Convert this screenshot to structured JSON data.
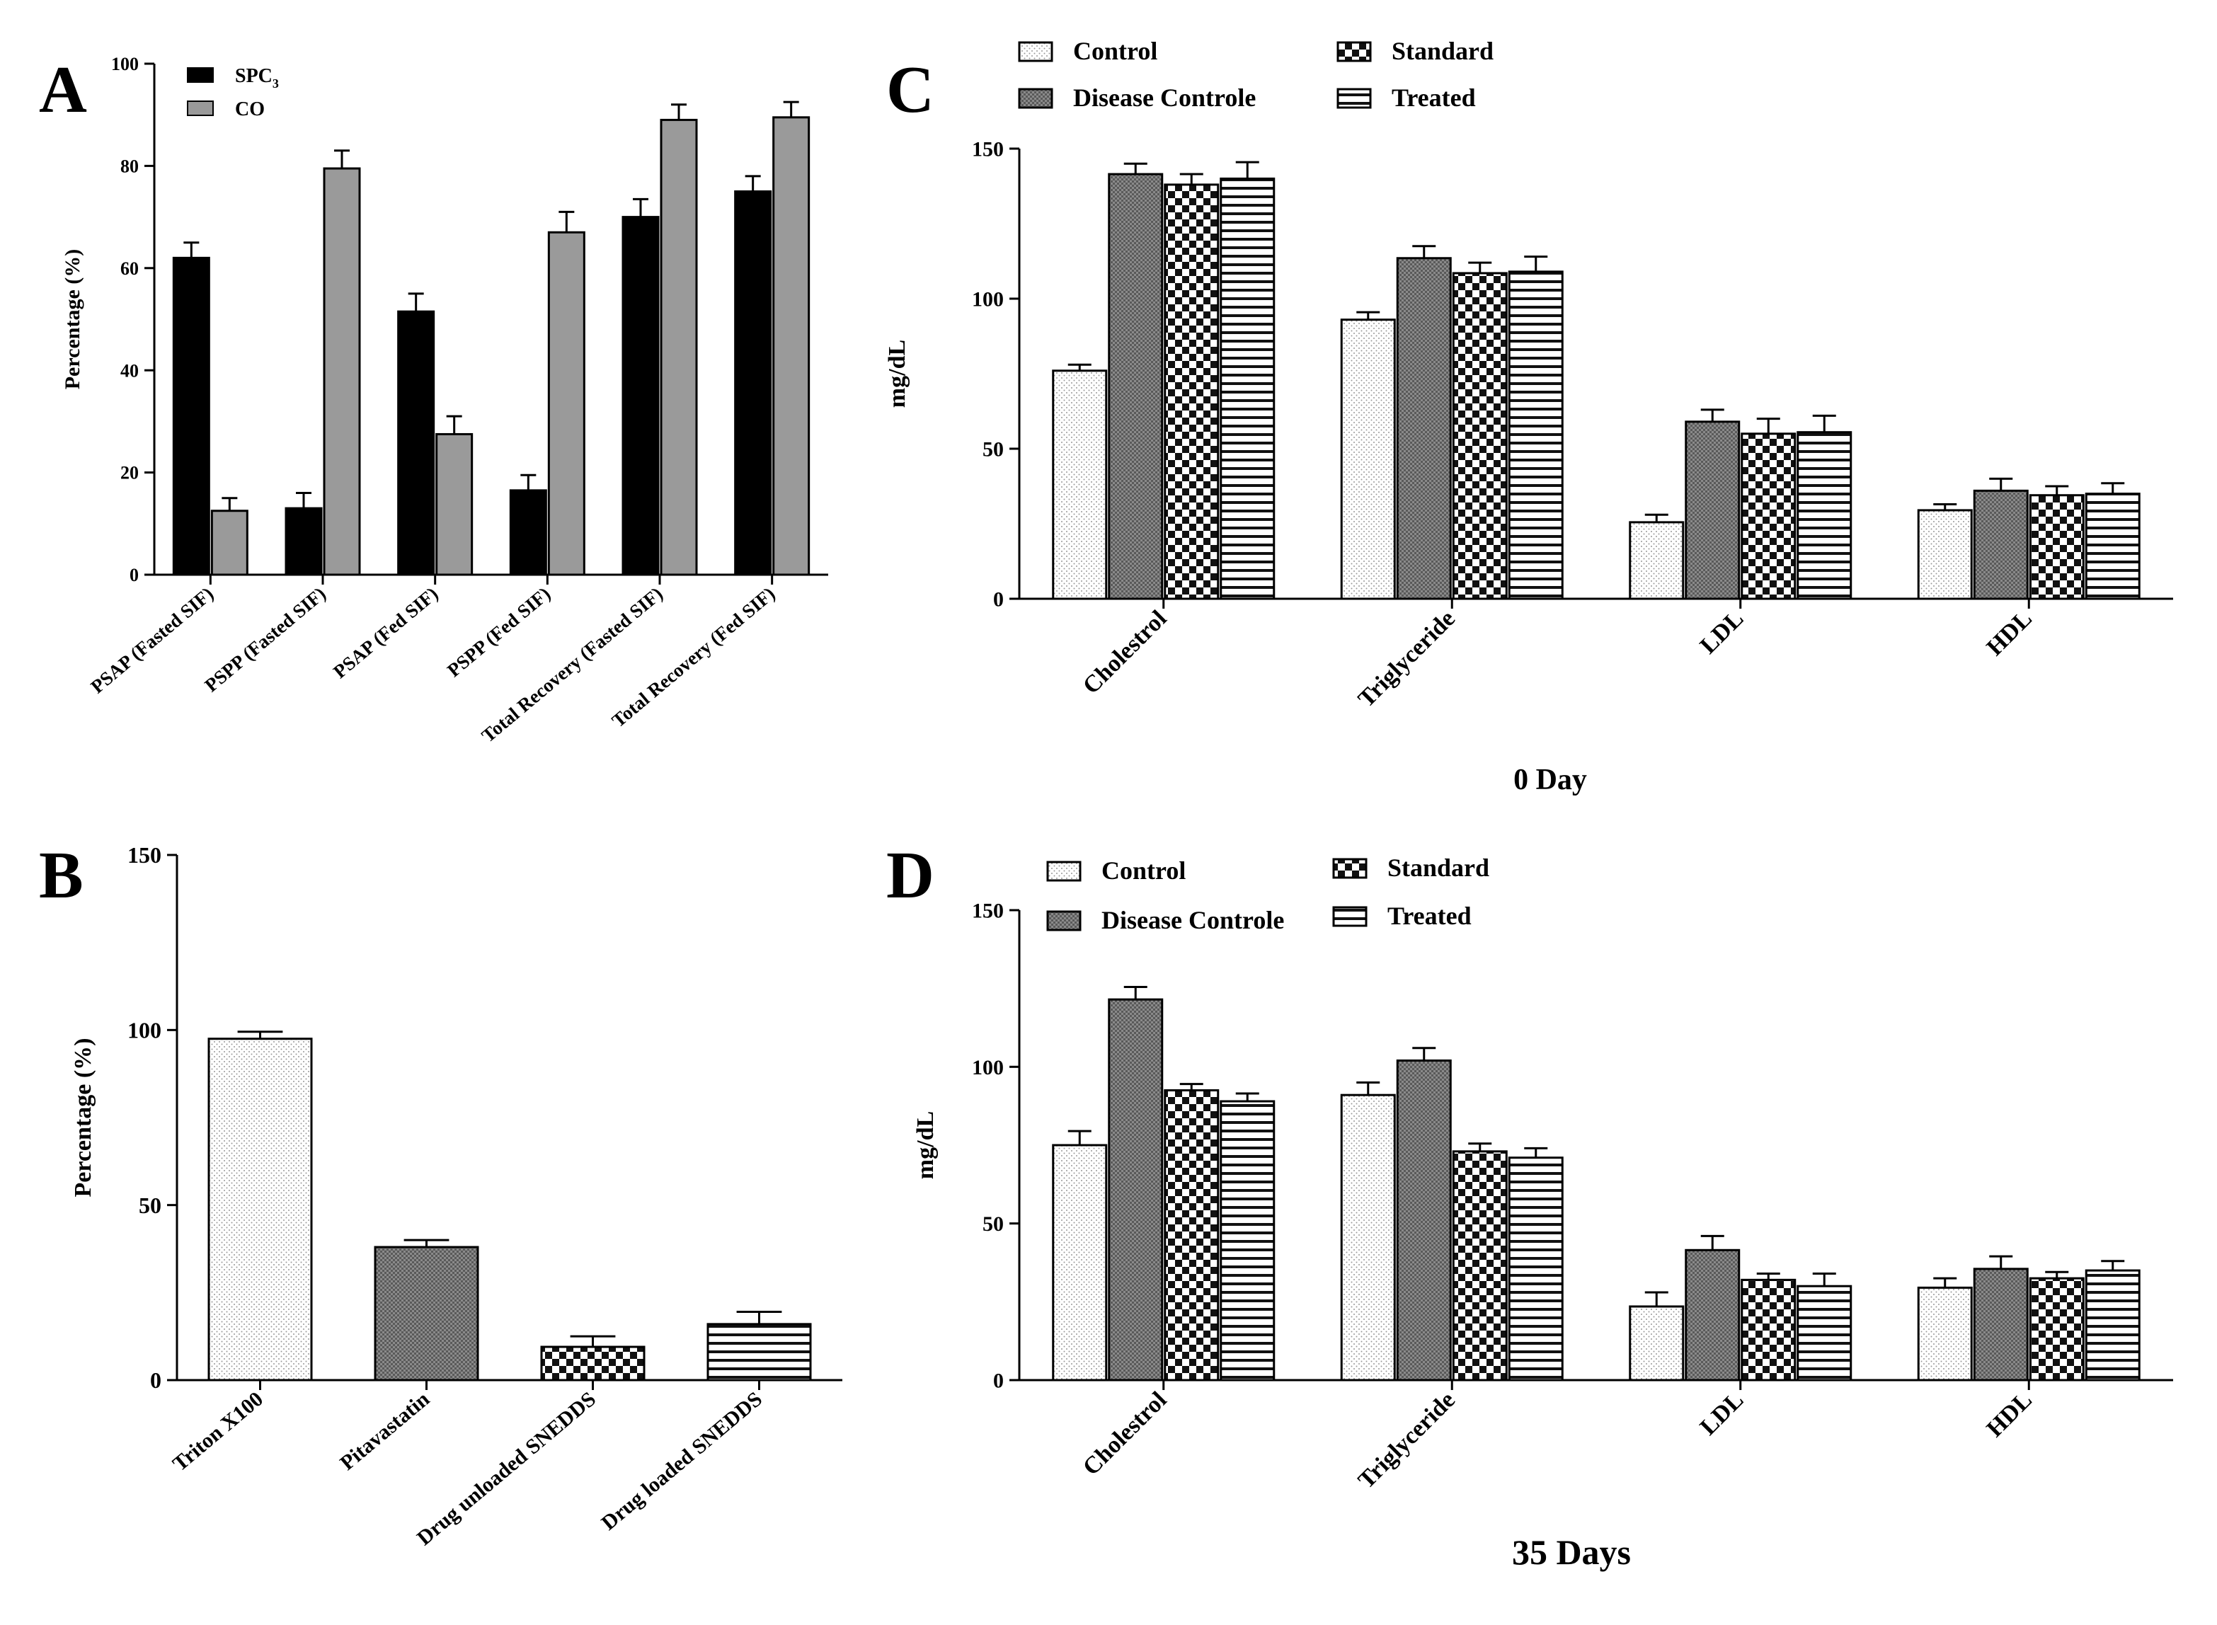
{
  "chart_data": [
    {
      "panel": "A",
      "type": "bar",
      "title": "",
      "xlabel": "",
      "ylabel": "Percentage (%)",
      "ylim": [
        0,
        100
      ],
      "yticks": [
        0,
        20,
        40,
        60,
        80,
        100
      ],
      "categories": [
        "PSAP (Fasted SIF)",
        "PSPP (Fasted SIF)",
        "PSAP (Fed SIF)",
        "PSPP (Fed SIF)",
        "Total Recovery (Fasted SIF)",
        "Total Recovery (Fed SIF)"
      ],
      "legend_position": "top-left",
      "series": [
        {
          "name": "SPC",
          "name_sub": "3",
          "pattern": "solid-black",
          "values": [
            62,
            13,
            51.5,
            16.5,
            70,
            75
          ],
          "errors": [
            3,
            3,
            3.5,
            3,
            3.5,
            3
          ]
        },
        {
          "name": "CO",
          "pattern": "solid-gray",
          "values": [
            12.5,
            79.5,
            27.5,
            67,
            89,
            89.5
          ],
          "errors": [
            2.5,
            3.5,
            3.5,
            4,
            3,
            3
          ]
        }
      ]
    },
    {
      "panel": "B",
      "type": "bar",
      "title": "",
      "xlabel": "",
      "ylabel": "Percentage (%)",
      "ylim": [
        0,
        150
      ],
      "yticks": [
        0,
        50,
        100,
        150
      ],
      "categories": [
        "Triton X100",
        "Pitavastatin",
        "Drug unloaded SNEDDS",
        "Drug loaded SNEDDS"
      ],
      "series": [
        {
          "name": "",
          "patterns": [
            "dots",
            "dense",
            "checker",
            "hlines"
          ],
          "values": [
            97.5,
            38,
            9.5,
            16
          ],
          "errors": [
            2,
            2,
            3,
            3.5
          ]
        }
      ]
    },
    {
      "panel": "C",
      "type": "bar",
      "title": "0 Day",
      "xlabel": "0 Day",
      "ylabel": "mg/dL",
      "ylim": [
        0,
        150
      ],
      "yticks": [
        0,
        50,
        100,
        150
      ],
      "categories": [
        "Cholestrol",
        "Triglyceride",
        "LDL",
        "HDL"
      ],
      "legend_position": "top-left",
      "series": [
        {
          "name": "Control",
          "pattern": "dots",
          "values": [
            76,
            93,
            25.5,
            29.5
          ],
          "errors": [
            2,
            2.5,
            2.5,
            2
          ]
        },
        {
          "name": "Disease Controle",
          "pattern": "dense",
          "values": [
            141.5,
            113.5,
            59,
            36
          ],
          "errors": [
            3.5,
            4,
            4,
            4
          ]
        },
        {
          "name": "Standard",
          "pattern": "checker",
          "values": [
            138,
            108.5,
            55,
            34.5
          ],
          "errors": [
            3.5,
            3.5,
            5,
            3
          ]
        },
        {
          "name": "Treated",
          "pattern": "hlines",
          "values": [
            140,
            109,
            55.5,
            35
          ],
          "errors": [
            5.5,
            5,
            5.5,
            3.5
          ]
        }
      ]
    },
    {
      "panel": "D",
      "type": "bar",
      "title": "35 Days",
      "xlabel": "35 Days",
      "ylabel": "mg/dL",
      "ylim": [
        0,
        150
      ],
      "yticks": [
        0,
        50,
        100,
        150
      ],
      "categories": [
        "Cholestrol",
        "Triglyceride",
        "LDL",
        "HDL"
      ],
      "legend_position": "top-left",
      "series": [
        {
          "name": "Control",
          "pattern": "dots",
          "values": [
            75,
            91,
            23.5,
            29.5
          ],
          "errors": [
            4.5,
            4,
            4.5,
            3
          ]
        },
        {
          "name": "Disease Controle",
          "pattern": "dense",
          "values": [
            121.5,
            102,
            41.5,
            35.5
          ],
          "errors": [
            4,
            4,
            4.5,
            4
          ]
        },
        {
          "name": "Standard",
          "pattern": "checker",
          "values": [
            92.5,
            73,
            32,
            32.5
          ],
          "errors": [
            2,
            2.5,
            2,
            2
          ]
        },
        {
          "name": "Treated",
          "pattern": "hlines",
          "values": [
            89,
            71,
            30,
            35
          ],
          "errors": [
            2.5,
            3,
            4,
            3
          ]
        }
      ]
    }
  ],
  "panel_labels": [
    "A",
    "B",
    "C",
    "D"
  ]
}
